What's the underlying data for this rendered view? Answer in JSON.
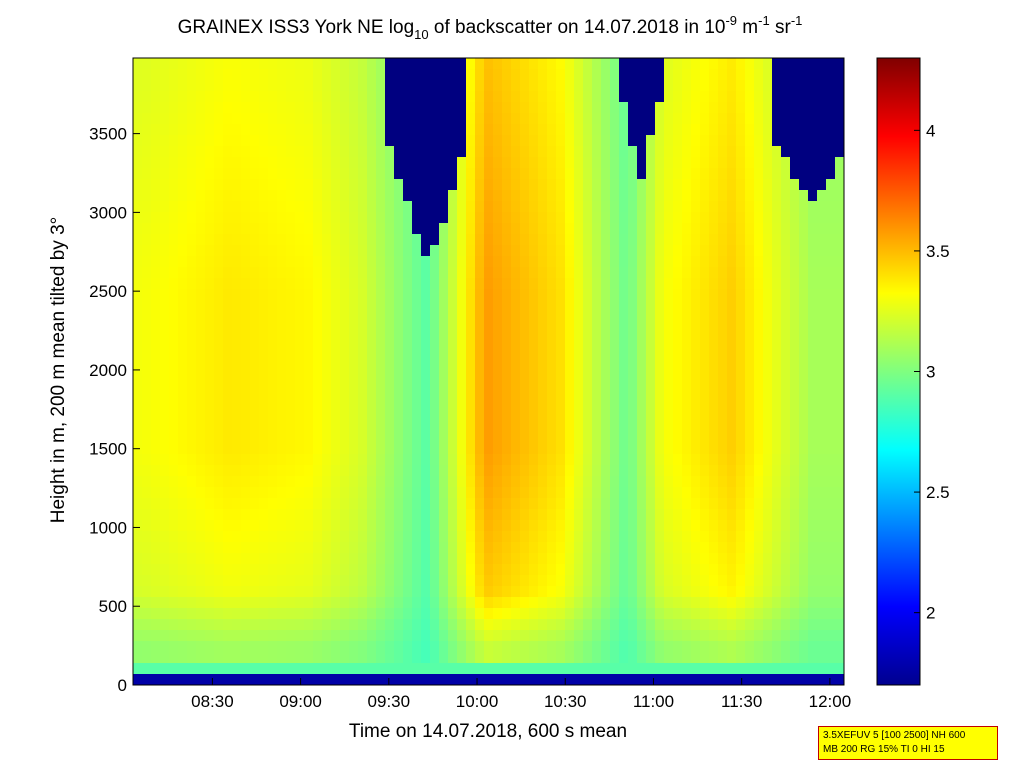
{
  "chart_data": {
    "type": "heatmap",
    "title": {
      "prefix": "GRAINEX ISS3 York NE log",
      "sub1": "10",
      "middle": " of backscatter on 14.07.2018 in 10",
      "sup1": "-9",
      "unit_m": " m",
      "sup2": "-1",
      "unit_sr": " sr",
      "sup3": "-1"
    },
    "xlabel": "Time on 14.07.2018, 600 s mean",
    "ylabel": "Height in m, 200 m mean tilted by 3°",
    "x_ticks": [
      "08:30",
      "09:00",
      "09:30",
      "10:00",
      "10:30",
      "11:00",
      "11:30",
      "12:00"
    ],
    "x_tick_hours": [
      8.5,
      9.0,
      9.5,
      10.0,
      10.5,
      11.0,
      11.5,
      12.0
    ],
    "xlim_hours": [
      8.05,
      12.08
    ],
    "y_ticks": [
      0,
      500,
      1000,
      1500,
      2000,
      2500,
      3000,
      3500
    ],
    "ylim": [
      0,
      3980
    ],
    "colorbar": {
      "range": [
        1.7,
        4.3
      ],
      "ticks": [
        2,
        2.5,
        3,
        3.5,
        4
      ],
      "colormap": "jet"
    },
    "layers": [
      {
        "name": "column_peaks",
        "hours": [
          8.1,
          8.6,
          9.05,
          9.35,
          9.72,
          10.05,
          10.48,
          10.85,
          11.05,
          11.45,
          11.9
        ],
        "values": [
          3.3,
          3.38,
          3.34,
          3.22,
          2.9,
          3.58,
          3.4,
          2.95,
          3.3,
          3.45,
          3.1
        ]
      },
      {
        "name": "clear_air_top",
        "region": "above 3200 m",
        "value": 1.7
      },
      {
        "name": "near_ground_bands",
        "heights": [
          25,
          90,
          130
        ],
        "values": [
          1.8,
          2.9,
          1.75
        ]
      }
    ]
  },
  "info_box": {
    "line1": "3.5XEFUV 5 [100 2500] NH 600",
    "line2": "MB 200 RG 15% TI 0 HI 15"
  }
}
